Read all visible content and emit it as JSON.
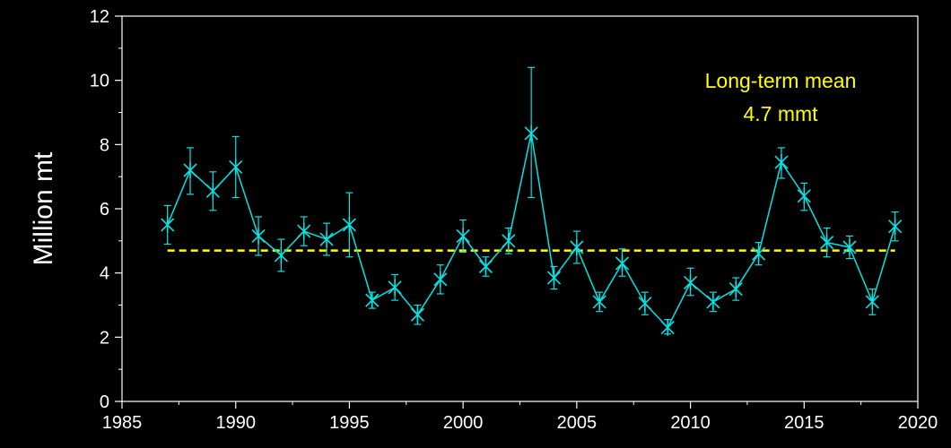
{
  "chart_data": {
    "type": "line",
    "title": "",
    "xlabel": "",
    "ylabel": "Million mt",
    "xlim": [
      1985,
      2020
    ],
    "ylim": [
      0,
      12
    ],
    "x_ticks": [
      1985,
      1990,
      1995,
      2000,
      2005,
      2010,
      2015,
      2020
    ],
    "y_ticks": [
      0,
      2,
      4,
      6,
      8,
      10,
      12
    ],
    "grid": false,
    "legend": "none",
    "series": [
      {
        "x": [
          1987,
          1988,
          1989,
          1990,
          1991,
          1992,
          1993,
          1994,
          1995,
          1996,
          1997,
          1998,
          1999,
          2000,
          2001,
          2002,
          2003,
          2004,
          2005,
          2006,
          2007,
          2008,
          2009,
          2010,
          2011,
          2012,
          2013,
          2014,
          2015,
          2016,
          2017,
          2018,
          2019
        ],
        "values": [
          5.5,
          7.2,
          6.55,
          7.3,
          5.15,
          4.55,
          5.3,
          5.05,
          5.5,
          3.15,
          3.55,
          2.7,
          3.8,
          5.15,
          4.2,
          5.0,
          8.35,
          3.85,
          4.8,
          3.1,
          4.3,
          3.05,
          2.3,
          3.7,
          3.1,
          3.5,
          4.6,
          7.45,
          6.4,
          4.95,
          4.8,
          3.1,
          5.45
        ],
        "error_low": [
          4.9,
          6.45,
          5.95,
          6.35,
          4.55,
          4.05,
          4.85,
          4.55,
          4.5,
          2.9,
          3.15,
          2.4,
          3.35,
          4.65,
          3.9,
          4.6,
          6.35,
          3.5,
          4.3,
          2.8,
          3.9,
          2.7,
          2.1,
          3.3,
          2.8,
          3.15,
          4.25,
          6.95,
          5.95,
          4.5,
          4.45,
          2.7,
          5.0
        ],
        "error_high": [
          6.1,
          7.9,
          7.15,
          8.25,
          5.75,
          5.05,
          5.75,
          5.55,
          6.5,
          3.4,
          3.95,
          3.0,
          4.25,
          5.65,
          4.5,
          5.4,
          10.4,
          4.2,
          5.3,
          3.4,
          4.75,
          3.4,
          2.55,
          4.15,
          3.4,
          3.85,
          4.95,
          7.9,
          6.8,
          5.4,
          5.15,
          3.5,
          5.9
        ],
        "color": "#00e5e5"
      }
    ],
    "reference_line": {
      "y": 4.7,
      "x_range": [
        1987,
        2019
      ],
      "color": "#ffff00",
      "style": "dashed"
    },
    "annotation": {
      "lines": [
        "Long-term mean",
        "4.7 mmt"
      ],
      "color": "#ffff00"
    }
  }
}
